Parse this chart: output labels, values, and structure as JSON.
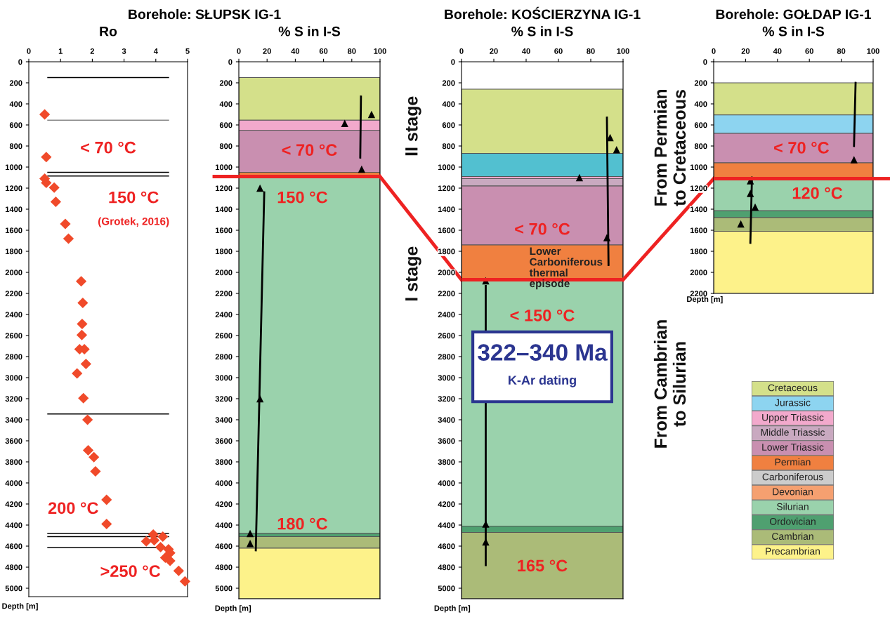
{
  "chart_data": [
    {
      "type": "scatter",
      "title": "Borehole: SŁUPSK IG-1",
      "subtitle": "Ro",
      "ylabel": "Depth [m]",
      "xlim": [
        0,
        5
      ],
      "xticks": [
        0,
        1,
        2,
        3,
        4,
        5
      ],
      "ylim": [
        5080,
        0
      ],
      "yticks": [
        0,
        200,
        400,
        600,
        800,
        1000,
        1200,
        1400,
        1600,
        1800,
        2000,
        2200,
        2400,
        2600,
        2800,
        3000,
        3200,
        3400,
        3600,
        3800,
        4000,
        4200,
        4400,
        4600,
        4800,
        5000
      ],
      "series": [
        {
          "type": "scatter",
          "marker": "diamond",
          "color": "#f04a2a",
          "x": [
            0.5,
            0.55,
            0.5,
            0.55,
            0.8,
            0.85,
            1.15,
            1.25,
            1.65,
            1.7,
            1.68,
            1.67,
            1.6,
            1.75,
            1.8,
            1.52,
            1.72,
            1.85,
            1.87,
            2.05,
            2.1,
            2.45,
            2.45,
            3.92,
            4.22,
            3.95,
            3.7,
            4.15,
            4.4,
            4.45,
            4.3,
            4.45,
            4.72,
            4.92
          ],
          "values": [
            500,
            905,
            1110,
            1150,
            1195,
            1330,
            1540,
            1680,
            2085,
            2290,
            2490,
            2595,
            2730,
            2730,
            2870,
            2960,
            3195,
            3400,
            3690,
            3755,
            3890,
            4160,
            4390,
            4490,
            4510,
            4545,
            4555,
            4610,
            4630,
            4665,
            4710,
            4740,
            4835,
            4935
          ]
        }
      ],
      "ref_lines": [
        {
          "axis": "y",
          "value": 150,
          "color": "#000000"
        },
        {
          "axis": "y",
          "value": 555,
          "color": "#888888"
        },
        {
          "axis": "y",
          "value": 1050,
          "color": "#000000"
        },
        {
          "axis": "y",
          "value": 1085,
          "color": "#000000"
        },
        {
          "axis": "y",
          "value": 3345,
          "color": "#000000"
        },
        {
          "axis": "y",
          "value": 4480,
          "color": "#000000"
        },
        {
          "axis": "y",
          "value": 4510,
          "color": "#000000"
        },
        {
          "axis": "y",
          "value": 4615,
          "color": "#000000"
        }
      ],
      "annotations": [
        "< 70 °C",
        "150 °C",
        "200 °C",
        ">250 °C",
        "(Grotek, 2016)"
      ]
    },
    {
      "type": "scatter",
      "subtitle": "% S in I-S",
      "ylabel": "Depth [m]",
      "xlim": [
        0,
        100
      ],
      "xticks": [
        0,
        20,
        40,
        60,
        80,
        100
      ],
      "ylim": [
        5100,
        0
      ],
      "yticks": [
        0,
        200,
        400,
        600,
        800,
        1000,
        1200,
        1400,
        1600,
        1800,
        2000,
        2200,
        2400,
        2600,
        2800,
        3000,
        3200,
        3400,
        3600,
        3800,
        4000,
        4200,
        4400,
        4600,
        4800,
        5000
      ],
      "bands": [
        {
          "axis": "y",
          "from": 150,
          "to": 555,
          "color": "#d4e08a"
        },
        {
          "axis": "y",
          "from": 555,
          "to": 650,
          "color": "#f2a9cc"
        },
        {
          "axis": "y",
          "from": 650,
          "to": 1050,
          "color": "#c98fb0"
        },
        {
          "axis": "y",
          "from": 1050,
          "to": 1085,
          "color": "#f08040"
        },
        {
          "axis": "y",
          "from": 1085,
          "to": 4480,
          "color": "#9ad2ac"
        },
        {
          "axis": "y",
          "from": 4480,
          "to": 4510,
          "color": "#4fa070"
        },
        {
          "axis": "y",
          "from": 4510,
          "to": 4620,
          "color": "#abbb78"
        },
        {
          "axis": "y",
          "from": 4620,
          "to": 5100,
          "color": "#fdf28a"
        }
      ],
      "series": [
        {
          "type": "scatter",
          "marker": "triangle",
          "color": "#000000",
          "x": [
            94,
            75,
            87,
            15,
            15,
            8,
            8
          ],
          "values": [
            500,
            585,
            1020,
            1200,
            3200,
            4480,
            4575
          ]
        },
        {
          "type": "line",
          "color": "#000000",
          "x": [
            86.5,
            86
          ],
          "values": [
            330,
            910
          ]
        },
        {
          "type": "line",
          "color": "#000000",
          "x": [
            18,
            12
          ],
          "values": [
            1240,
            4640
          ]
        }
      ],
      "ref_lines": [
        {
          "axis": "y",
          "value": 1090,
          "color": "#ee2222"
        }
      ],
      "annotations": [
        "< 70 °C",
        "150 °C",
        "180 °C"
      ]
    },
    {
      "type": "scatter",
      "title": "Borehole: KOŚCIERZYNA IG-1",
      "subtitle": "% S in I-S",
      "ylabel": "Depth [m]",
      "xlim": [
        0,
        100
      ],
      "xticks": [
        0,
        20,
        40,
        60,
        80,
        100
      ],
      "ylim": [
        5100,
        0
      ],
      "yticks": [
        0,
        200,
        400,
        600,
        800,
        1000,
        1200,
        1400,
        1600,
        1800,
        2000,
        2200,
        2400,
        2600,
        2800,
        3000,
        3200,
        3400,
        3600,
        3800,
        4000,
        4200,
        4400,
        4600,
        4800,
        5000
      ],
      "bands": [
        {
          "axis": "y",
          "from": 260,
          "to": 870,
          "color": "#d4e08a"
        },
        {
          "axis": "y",
          "from": 870,
          "to": 1090,
          "color": "#52c0d0"
        },
        {
          "axis": "y",
          "from": 1090,
          "to": 1110,
          "color": "#f2a9cc"
        },
        {
          "axis": "y",
          "from": 1110,
          "to": 1180,
          "color": "#c9a9c0"
        },
        {
          "axis": "y",
          "from": 1180,
          "to": 1740,
          "color": "#c98fb0"
        },
        {
          "axis": "y",
          "from": 1740,
          "to": 2070,
          "color": "#f08040"
        },
        {
          "axis": "y",
          "from": 2070,
          "to": 4410,
          "color": "#9ad2ac"
        },
        {
          "axis": "y",
          "from": 4410,
          "to": 4470,
          "color": "#4fa070"
        },
        {
          "axis": "y",
          "from": 4470,
          "to": 5100,
          "color": "#abbb78"
        }
      ],
      "series": [
        {
          "type": "scatter",
          "marker": "triangle",
          "color": "#000000",
          "x": [
            92,
            96,
            73,
            90,
            15,
            15,
            15
          ],
          "values": [
            720,
            835,
            1100,
            1670,
            2080,
            4390,
            4560
          ]
        },
        {
          "type": "line",
          "color": "#000000",
          "x": [
            90,
            91
          ],
          "values": [
            530,
            1930
          ]
        },
        {
          "type": "line",
          "color": "#000000",
          "x": [
            15,
            15
          ],
          "values": [
            2130,
            4780
          ]
        }
      ],
      "ref_lines": [
        {
          "axis": "y",
          "value": 2070,
          "color": "#ee2222"
        }
      ],
      "annotations": [
        "< 70 °C",
        "< 150 °C",
        "165 °C",
        "Lower Carboniferous thermal episode",
        "322–340 Ma",
        "K-Ar dating",
        "II stage",
        "I stage",
        "From Permian\nto Cretaceous",
        "From Cambrian\nto Silurian"
      ]
    },
    {
      "type": "scatter",
      "title": "Borehole: GOŁDAP IG-1",
      "subtitle": "% S in I-S",
      "ylabel": "Depth [m]",
      "xlim": [
        0,
        100
      ],
      "xticks": [
        0,
        20,
        40,
        60,
        80,
        100
      ],
      "ylim": [
        2200,
        0
      ],
      "yticks": [
        0,
        200,
        400,
        600,
        800,
        1000,
        1200,
        1400,
        1600,
        1800,
        2000,
        2200
      ],
      "bands": [
        {
          "axis": "y",
          "from": 200,
          "to": 505,
          "color": "#d4e08a"
        },
        {
          "axis": "y",
          "from": 505,
          "to": 680,
          "color": "#8dd4f0"
        },
        {
          "axis": "y",
          "from": 680,
          "to": 960,
          "color": "#c98fb0"
        },
        {
          "axis": "y",
          "from": 960,
          "to": 1110,
          "color": "#f08040"
        },
        {
          "axis": "y",
          "from": 1110,
          "to": 1415,
          "color": "#9ad2ac"
        },
        {
          "axis": "y",
          "from": 1415,
          "to": 1480,
          "color": "#4fa070"
        },
        {
          "axis": "y",
          "from": 1480,
          "to": 1610,
          "color": "#abbb78"
        },
        {
          "axis": "y",
          "from": 1610,
          "to": 2200,
          "color": "#fdf28a"
        }
      ],
      "series": [
        {
          "type": "scatter",
          "marker": "triangle",
          "color": "#000000",
          "x": [
            88,
            23,
            23,
            26,
            17
          ],
          "values": [
            930,
            1130,
            1250,
            1380,
            1540
          ]
        },
        {
          "type": "line",
          "color": "#000000",
          "x": [
            89,
            88
          ],
          "values": [
            200,
            800
          ]
        },
        {
          "type": "line",
          "color": "#000000",
          "x": [
            24,
            23
          ],
          "values": [
            1100,
            1720
          ]
        }
      ],
      "ref_lines": [
        {
          "axis": "y",
          "value": 1110,
          "color": "#ee2222"
        }
      ],
      "annotations": [
        "< 70 °C",
        "120 °C"
      ]
    },
    {
      "type": "other",
      "categories": [
        "Cretaceous",
        "Jurassic",
        "Upper Triassic",
        "Middle Triassic",
        "Lower Triassic",
        "Permian",
        "Carboniferous",
        "Devonian",
        "Silurian",
        "Ordovician",
        "Cambrian",
        "Precambrian"
      ],
      "colors": [
        "#d4e08a",
        "#8dd4f0",
        "#f2a9cc",
        "#c9a9c0",
        "#c98fb0",
        "#f08040",
        "#cccccc",
        "#f5a070",
        "#9ad2ac",
        "#4fa070",
        "#abbb78",
        "#fdf28a"
      ]
    }
  ]
}
